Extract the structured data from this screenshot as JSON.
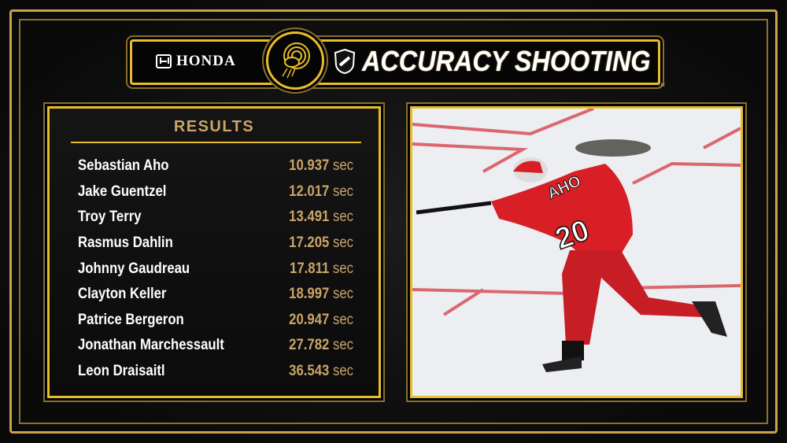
{
  "header": {
    "sponsor": "HONDA",
    "sponsor_icon": "honda-h-logo",
    "league_icon": "nhl-shield-logo",
    "title": "ACCURACY SHOOTING",
    "trademark": "TM"
  },
  "results": {
    "heading": "RESULTS",
    "unit": "sec",
    "rows": [
      {
        "name": "Sebastian Aho",
        "time": "10.937"
      },
      {
        "name": "Jake Guentzel",
        "time": "12.017"
      },
      {
        "name": "Troy Terry",
        "time": "13.491"
      },
      {
        "name": "Rasmus Dahlin",
        "time": "17.205"
      },
      {
        "name": "Johnny Gaudreau",
        "time": "17.811"
      },
      {
        "name": "Clayton Keller",
        "time": "18.997"
      },
      {
        "name": "Patrice Bergeron",
        "time": "20.947"
      },
      {
        "name": "Jonathan Marchessault",
        "time": "27.782"
      },
      {
        "name": "Leon Draisaitl",
        "time": "36.543"
      }
    ]
  },
  "photo": {
    "jersey_name": "AHO",
    "jersey_number": "20"
  },
  "colors": {
    "gold": "#e9bd2a",
    "time_gold": "#c9a468",
    "background": "#111111",
    "jersey_red": "#d81f26"
  }
}
